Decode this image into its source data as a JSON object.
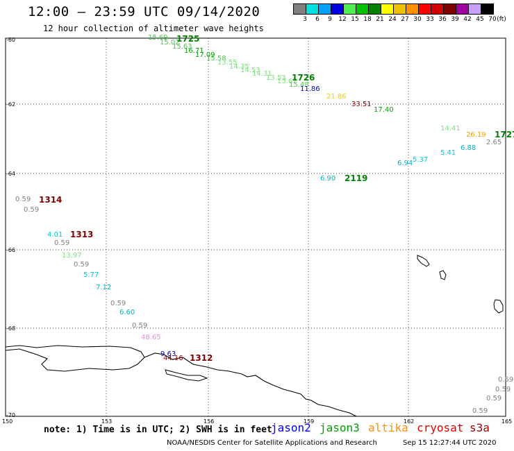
{
  "header": {
    "title": "12:00 – 23:59 UTC 09/14/2020",
    "subtitle": "12 hour collection of altimeter wave heights"
  },
  "legend": {
    "unit": "(ft)",
    "bins": [
      {
        "label": "3",
        "color": "#808080"
      },
      {
        "label": "6",
        "color": "#00e0e0"
      },
      {
        "label": "9",
        "color": "#00a0ff"
      },
      {
        "label": "12",
        "color": "#0000e0"
      },
      {
        "label": "15",
        "color": "#50f050"
      },
      {
        "label": "18",
        "color": "#00c000"
      },
      {
        "label": "21",
        "color": "#008000"
      },
      {
        "label": "24",
        "color": "#ffff00"
      },
      {
        "label": "27",
        "color": "#f0c000"
      },
      {
        "label": "30",
        "color": "#ff9000"
      },
      {
        "label": "33",
        "color": "#ff0000"
      },
      {
        "label": "36",
        "color": "#d00000"
      },
      {
        "label": "39",
        "color": "#800000"
      },
      {
        "label": "42",
        "color": "#a000a0"
      },
      {
        "label": "45",
        "color": "#c8a0ff"
      },
      {
        "label": "70",
        "color": "#000000"
      }
    ]
  },
  "axes": {
    "lat_labels": [
      "-60",
      "-62",
      "-64",
      "-66",
      "-68",
      "-70"
    ],
    "lon_labels": [
      "150",
      "153",
      "156",
      "159",
      "162",
      "165"
    ]
  },
  "observations": [
    {
      "text": "15.69",
      "color": "#50c050"
    },
    {
      "text": "15.02",
      "color": "#50c050"
    },
    {
      "text": "15.63",
      "color": "#50c050"
    },
    {
      "text": "16.71",
      "color": "#00a000"
    },
    {
      "text": "17.09",
      "color": "#00a000"
    },
    {
      "text": "15.58",
      "color": "#50c050"
    },
    {
      "text": "13.55",
      "color": "#80e080"
    },
    {
      "text": "14.35",
      "color": "#80e080"
    },
    {
      "text": "14.53",
      "color": "#80e080"
    },
    {
      "text": "14.31",
      "color": "#80e080"
    },
    {
      "text": "13.53",
      "color": "#80e080"
    },
    {
      "text": "13.67",
      "color": "#80e080"
    },
    {
      "text": "15.48",
      "color": "#50c050"
    },
    {
      "text": "11.86",
      "color": "#0000c0"
    },
    {
      "text": "21.86",
      "color": "#f0d000"
    },
    {
      "text": "33.51",
      "color": "#800000"
    },
    {
      "text": "17.40",
      "color": "#00a000"
    },
    {
      "text": "14.41",
      "color": "#80e080"
    },
    {
      "text": "26.19",
      "color": "#f0a000"
    },
    {
      "text": "2.65",
      "color": "#808080"
    },
    {
      "text": "6.88",
      "color": "#00b0c0"
    },
    {
      "text": "5.41",
      "color": "#00c8d8"
    },
    {
      "text": "5.37",
      "color": "#00c8d8"
    },
    {
      "text": "6.94",
      "color": "#00b0c0"
    },
    {
      "text": "6.90",
      "color": "#00b0c0"
    },
    {
      "text": "0.59",
      "color": "#808080"
    },
    {
      "text": "0.59",
      "color": "#808080"
    },
    {
      "text": "4.01",
      "color": "#00c8d8"
    },
    {
      "text": "0.59",
      "color": "#808080"
    },
    {
      "text": "13.97",
      "color": "#80e080"
    },
    {
      "text": "0.59",
      "color": "#808080"
    },
    {
      "text": "5.77",
      "color": "#00c8d8"
    },
    {
      "text": "7.12",
      "color": "#00b0c0"
    },
    {
      "text": "0.59",
      "color": "#808080"
    },
    {
      "text": "6.60",
      "color": "#00b0c0"
    },
    {
      "text": "0.59",
      "color": "#808080"
    },
    {
      "text": "48.65",
      "color": "#e090e0"
    },
    {
      "text": "9.63",
      "color": "#0000c0"
    },
    {
      "text": "44.16",
      "color": "#800000"
    },
    {
      "text": "0.59",
      "color": "#808080"
    },
    {
      "text": "0.59",
      "color": "#808080"
    },
    {
      "text": "0.59",
      "color": "#808080"
    },
    {
      "text": "0.59",
      "color": "#808080"
    }
  ],
  "passes": [
    {
      "text": "1725",
      "color": "#008000"
    },
    {
      "text": "1726",
      "color": "#008000"
    },
    {
      "text": "1727",
      "color": "#008000"
    },
    {
      "text": "2119",
      "color": "#008000"
    },
    {
      "text": "1314",
      "color": "#800000"
    },
    {
      "text": "1313",
      "color": "#800000"
    },
    {
      "text": "1312",
      "color": "#800000"
    }
  ],
  "footer": {
    "note": "note: 1) Time is in UTC; 2) SWH is in feet",
    "satellites": [
      {
        "name": "jason2",
        "color": "#0000ff"
      },
      {
        "name": "jason3",
        "color": "#00a000"
      },
      {
        "name": "altika",
        "color": "#ff9000"
      },
      {
        "name": "cryosat",
        "color": "#e00000"
      },
      {
        "name": "s3a",
        "color": "#a00000"
      }
    ],
    "credit": "NOAA/NESDIS Center for Satellite Applications and Research",
    "timestamp": "Sep 15 12:27:44 UTC 2020"
  }
}
